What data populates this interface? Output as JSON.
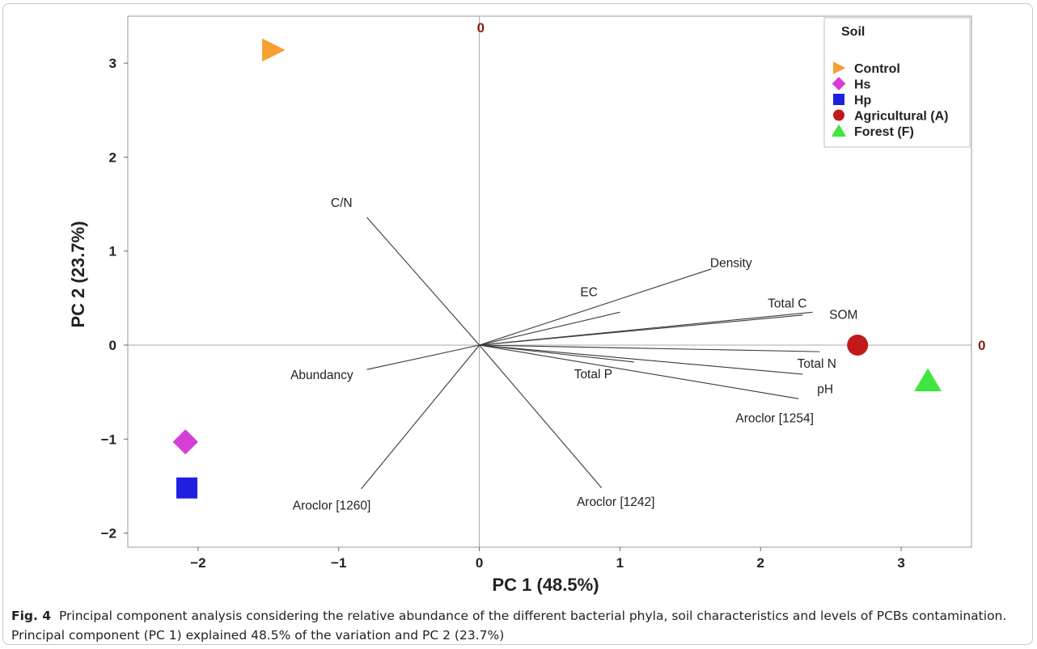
{
  "chart_data": {
    "type": "scatter",
    "subtype": "pca-biplot",
    "xlabel": "PC 1 (48.5%)",
    "ylabel": "PC 2 (23.7%)",
    "xlim": [
      -2.5,
      3.5
    ],
    "ylim": [
      -2.15,
      3.5
    ],
    "x_ticks": [
      -2,
      -1,
      0,
      1,
      2,
      3
    ],
    "y_ticks": [
      -2,
      -1,
      0,
      1,
      2,
      3
    ],
    "reference_lines": {
      "top_label": "0",
      "right_label": "0",
      "color": "#8b1a1a"
    },
    "legend": {
      "title": "Soil",
      "position": "top-right",
      "entries": [
        {
          "name": "Control",
          "marker": "triangle-right",
          "color": "#f5a031"
        },
        {
          "name": "Hs",
          "marker": "diamond",
          "color": "#d63fd6"
        },
        {
          "name": "Hp",
          "marker": "square",
          "color": "#1f1fe0"
        },
        {
          "name": "Agricultural (A)",
          "marker": "circle",
          "color": "#c21a1a"
        },
        {
          "name": "Forest (F)",
          "marker": "triangle-up",
          "color": "#3ee63e"
        }
      ]
    },
    "points": [
      {
        "name": "Control",
        "x": -1.47,
        "y": 3.14
      },
      {
        "name": "Hs",
        "x": -2.09,
        "y": -1.03
      },
      {
        "name": "Hp",
        "x": -2.08,
        "y": -1.52
      },
      {
        "name": "Agricultural (A)",
        "x": 2.69,
        "y": 0.0
      },
      {
        "name": "Forest (F)",
        "x": 3.19,
        "y": -0.38
      }
    ],
    "loadings": [
      {
        "label": "C/N",
        "x": -0.8,
        "y": 1.36,
        "lx": -0.98,
        "ly": 1.52
      },
      {
        "label": "Density",
        "x": 1.65,
        "y": 0.81,
        "lx": 1.79,
        "ly": 0.88
      },
      {
        "label": "EC",
        "x": 1.0,
        "y": 0.35,
        "lx": 0.78,
        "ly": 0.57
      },
      {
        "label": "Total C",
        "x": 2.3,
        "y": 0.32,
        "lx": 2.19,
        "ly": 0.45
      },
      {
        "label": "SOM",
        "x": 2.37,
        "y": 0.35,
        "lx": 2.59,
        "ly": 0.33
      },
      {
        "label": "Total N",
        "x": 2.42,
        "y": -0.07,
        "lx": 2.4,
        "ly": -0.19
      },
      {
        "label": "Total P",
        "x": 1.1,
        "y": -0.18,
        "lx": 0.81,
        "ly": -0.3
      },
      {
        "label": "pH",
        "x": 2.3,
        "y": -0.31,
        "lx": 2.46,
        "ly": -0.46
      },
      {
        "label": "Aroclor [1254]",
        "x": 2.27,
        "y": -0.57,
        "lx": 2.1,
        "ly": -0.77
      },
      {
        "label": "Abundancy",
        "x": -0.8,
        "y": -0.26,
        "lx": -1.12,
        "ly": -0.31
      },
      {
        "label": "Aroclor [1260]",
        "x": -0.84,
        "y": -1.53,
        "lx": -1.05,
        "ly": -1.7
      },
      {
        "label": "Aroclor [1242]",
        "x": 0.87,
        "y": -1.52,
        "lx": 0.97,
        "ly": -1.66
      }
    ]
  },
  "caption": {
    "label": "Fig. 4",
    "text": "Principal component analysis considering the relative abundance of the different bacterial phyla, soil characteristics and levels of PCBs contamination. Principal component (PC 1) explained 48.5% of the variation and PC 2 (23.7%)"
  }
}
